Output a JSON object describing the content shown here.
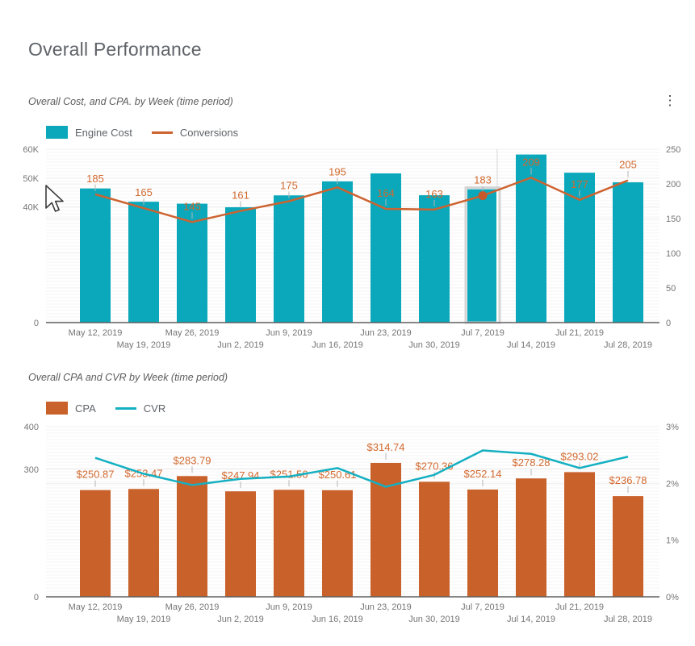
{
  "page": {
    "title": "Overall Performance"
  },
  "icons": {
    "more_options": "⋮"
  },
  "chart_data": [
    {
      "type": "bar+line",
      "title": "Overall Cost, and CPA. by Week (time period)",
      "categories": [
        "May 12, 2019",
        "May 19, 2019",
        "May 26, 2019",
        "Jun 2, 2019",
        "Jun 9, 2019",
        "Jun 16, 2019",
        "Jun 23, 2019",
        "Jun 30, 2019",
        "Jul 7, 2019",
        "Jul 14, 2019",
        "Jul 21, 2019",
        "Jul 28, 2019"
      ],
      "series": [
        {
          "name": "Engine Cost",
          "kind": "bar",
          "axis": "left",
          "color": "#0aa8ba",
          "values": [
            46411,
            41823,
            41150,
            39918,
            44023,
            48869,
            51617,
            44069,
            46142,
            58161,
            51865,
            48539
          ]
        },
        {
          "name": "Conversions",
          "kind": "line",
          "axis": "right",
          "color": "#cd6330",
          "values": [
            185,
            165,
            145,
            161,
            175,
            195,
            164,
            163,
            183,
            209,
            177,
            205
          ],
          "labels": [
            "185",
            "165",
            "145",
            "161",
            "175",
            "195",
            "164",
            "163",
            "183",
            "209",
            "177",
            "205"
          ]
        }
      ],
      "left_axis": {
        "min": 0,
        "max": 60000,
        "ticks": [
          {
            "v": 60000,
            "label": "60K"
          },
          {
            "v": 50000,
            "label": "50K"
          },
          {
            "v": 40000,
            "label": "40K"
          },
          {
            "v": 0,
            "label": "0"
          }
        ]
      },
      "right_axis": {
        "min": 0,
        "max": 250,
        "ticks": [
          {
            "v": 250,
            "label": "250"
          },
          {
            "v": 200,
            "label": "200"
          },
          {
            "v": 150,
            "label": "150"
          },
          {
            "v": 100,
            "label": "100"
          },
          {
            "v": 50,
            "label": "50"
          },
          {
            "v": 0,
            "label": "0"
          }
        ]
      },
      "label_color": "#d2692e",
      "hover": {
        "index": 8,
        "dot_color": "#c7582a",
        "crosshair_color": "#e2e2e2",
        "highlight_color": "#d4d4d4"
      },
      "legend_position": "top-left",
      "grid": "on"
    },
    {
      "type": "bar+line",
      "title": "Overall CPA and CVR by Week (time period)",
      "categories": [
        "May 12, 2019",
        "May 19, 2019",
        "May 26, 2019",
        "Jun 2, 2019",
        "Jun 9, 2019",
        "Jun 16, 2019",
        "Jun 23, 2019",
        "Jun 30, 2019",
        "Jul 7, 2019",
        "Jul 14, 2019",
        "Jul 21, 2019",
        "Jul 28, 2019"
      ],
      "series": [
        {
          "name": "CPA",
          "kind": "bar",
          "axis": "left",
          "color": "#c9612b",
          "values": [
            250.87,
            253.47,
            283.79,
            247.94,
            251.56,
            250.61,
            314.74,
            270.36,
            252.14,
            278.28,
            293.02,
            236.78
          ],
          "labels": [
            "$250.87",
            "$253.47",
            "$283.79",
            "$247.94",
            "$251.56",
            "$250.61",
            "$314.74",
            "$270.36",
            "$252.14",
            "$278.28",
            "$293.02",
            "$236.78"
          ]
        },
        {
          "name": "CVR",
          "kind": "line",
          "axis": "right",
          "color": "#14b0c2",
          "values": [
            2.45,
            2.17,
            1.97,
            2.08,
            2.12,
            2.27,
            1.94,
            2.15,
            2.58,
            2.52,
            2.27,
            2.47
          ]
        }
      ],
      "left_axis": {
        "min": 0,
        "max": 400,
        "ticks": [
          {
            "v": 400,
            "label": "400"
          },
          {
            "v": 300,
            "label": "300"
          },
          {
            "v": 0,
            "label": "0"
          }
        ]
      },
      "right_axis": {
        "min": 0,
        "max": 3,
        "ticks": [
          {
            "v": 3,
            "label": "3%"
          },
          {
            "v": 2,
            "label": "2%"
          },
          {
            "v": 1,
            "label": "1%"
          },
          {
            "v": 0,
            "label": "0%"
          }
        ]
      },
      "label_color": "#d2692e",
      "legend_position": "top-left",
      "grid": "on"
    }
  ]
}
